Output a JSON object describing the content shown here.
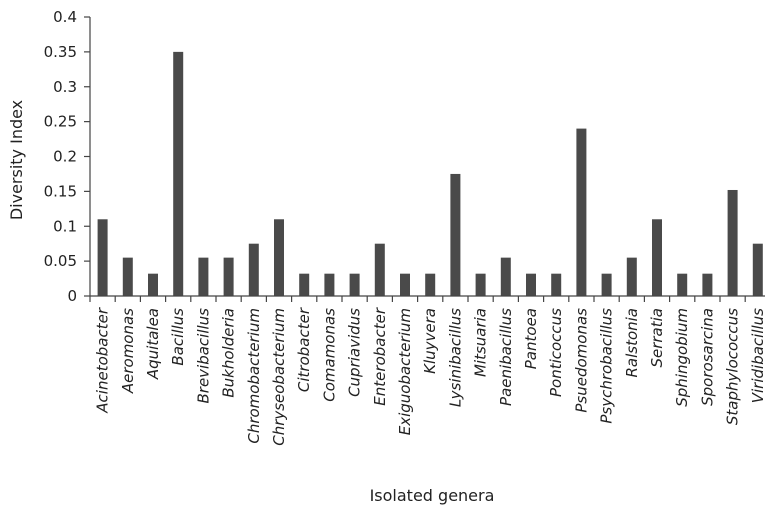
{
  "chart_data": {
    "type": "bar",
    "title": "",
    "xlabel": "Isolated genera",
    "ylabel": "Diversity Index",
    "ylim": [
      0,
      0.4
    ],
    "yticks": [
      "0",
      "0.05",
      "0.1",
      "0.15",
      "0.2",
      "0.25",
      "0.3",
      "0.35",
      "0.4"
    ],
    "grid": false,
    "bar_color": "#4a4a4a",
    "categories": [
      "Acinetobacter",
      "Aeromonas",
      "Aquitalea",
      "Bacillus",
      "Brevibacillus",
      "Bukholderia",
      "Chromobacterium",
      "Chryseobacterium",
      "Citrobacter",
      "Comamonas",
      "Cupriavidus",
      "Enterobacter",
      "Exiguobacterium",
      "Kluyvera",
      "Lysinibacillus",
      "Mitsuaria",
      "Paenibacillus",
      "Pantoea",
      "Ponticoccus",
      "Psuedomonas",
      "Psychrobacillus",
      "Ralstonia",
      "Serratia",
      "Sphingobium",
      "Sporosarcina",
      "Staphylococcus",
      "Viridibacillus"
    ],
    "values": [
      0.11,
      0.055,
      0.032,
      0.35,
      0.055,
      0.055,
      0.075,
      0.11,
      0.032,
      0.032,
      0.032,
      0.075,
      0.032,
      0.032,
      0.175,
      0.032,
      0.055,
      0.032,
      0.032,
      0.24,
      0.032,
      0.055,
      0.11,
      0.032,
      0.032,
      0.152,
      0.075
    ]
  }
}
